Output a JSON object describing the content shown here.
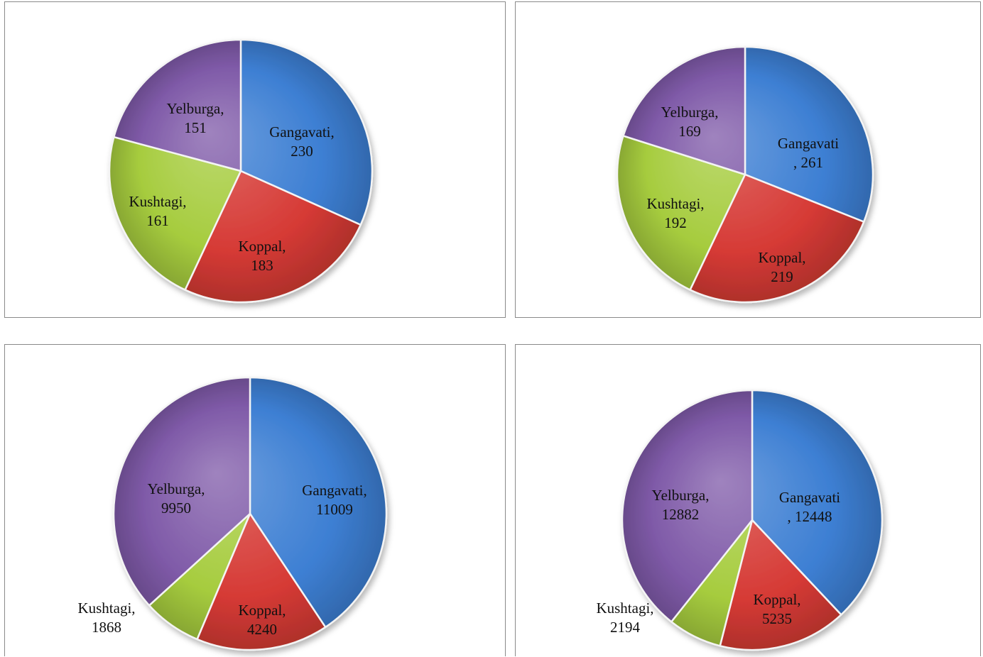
{
  "chart_data": [
    {
      "type": "pie",
      "title": "",
      "categories": [
        "Gangavati",
        "Koppal",
        "Kushtagi",
        "Yelburga"
      ],
      "values": [
        230,
        183,
        161,
        151
      ],
      "data_labels": [
        [
          "Gangavati,",
          "230"
        ],
        [
          "Koppal,",
          "183"
        ],
        [
          "Kushtagi,",
          "161"
        ],
        [
          "Yelburga,",
          "151"
        ]
      ],
      "legend": "none"
    },
    {
      "type": "pie",
      "title": "",
      "categories": [
        "Gangavati",
        "Koppal",
        "Kushtagi",
        "Yelburga"
      ],
      "values": [
        261,
        219,
        192,
        169
      ],
      "data_labels": [
        [
          "Gangavati",
          ", 261"
        ],
        [
          "Koppal,",
          "219"
        ],
        [
          "Kushtagi,",
          "192"
        ],
        [
          "Yelburga,",
          "169"
        ]
      ],
      "legend": "none"
    },
    {
      "type": "pie",
      "title": "",
      "categories": [
        "Gangavati",
        "Koppal",
        "Kushtagi",
        "Yelburga"
      ],
      "values": [
        11009,
        4240,
        1868,
        9950
      ],
      "data_labels": [
        [
          "Gangavati,",
          "11009"
        ],
        [
          "Koppal,",
          "4240"
        ],
        [
          "Kushtagi,",
          "1868"
        ],
        [
          "Yelburga,",
          "9950"
        ]
      ],
      "legend": "none"
    },
    {
      "type": "pie",
      "title": "",
      "categories": [
        "Gangavati",
        "Koppal",
        "Kushtagi",
        "Yelburga"
      ],
      "values": [
        12448,
        5235,
        2194,
        12882
      ],
      "data_labels": [
        [
          "Gangavati",
          ", 12448"
        ],
        [
          "Koppal,",
          "5235"
        ],
        [
          "Kushtagi,",
          "2194"
        ],
        [
          "Yelburga,",
          "12882"
        ]
      ],
      "legend": "none"
    }
  ],
  "colors": {
    "Gangavati": "#3d7fd3",
    "Koppal": "#d63a35",
    "Kushtagi": "#a6cc3e",
    "Yelburga": "#7f5aa8"
  }
}
